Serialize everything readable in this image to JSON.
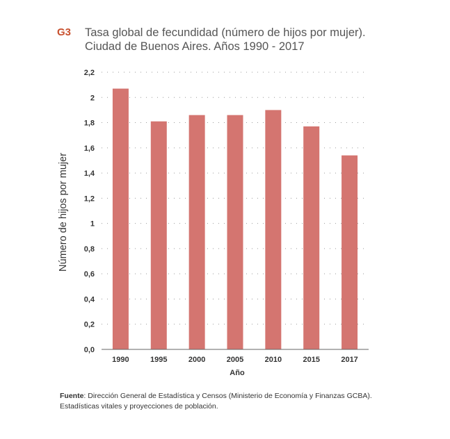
{
  "figure": {
    "label": "G3",
    "title_line1": "Tasa global de fecundidad (número de hijos por mujer).",
    "title_line2": "Ciudad de Buenos Aires. Años 1990 - 2017"
  },
  "chart_data": {
    "type": "bar",
    "categories": [
      "1990",
      "1995",
      "2000",
      "2005",
      "2010",
      "2015",
      "2017"
    ],
    "values": [
      2.07,
      1.81,
      1.86,
      1.86,
      1.9,
      1.77,
      1.54
    ],
    "ylim": [
      0,
      2.2
    ],
    "yticks": [
      0,
      0.2,
      0.4,
      0.6,
      0.8,
      1,
      1.2,
      1.4,
      1.6,
      1.8,
      2,
      2.2
    ],
    "ytick_labels": [
      "0,0",
      "0,2",
      "0,4",
      "0,6",
      "0,8",
      "1",
      "1,2",
      "1,4",
      "1,6",
      "1,8",
      "2",
      "2,2"
    ],
    "xlabel": "Año",
    "ylabel": "Número de hijos por mujer",
    "grid": "dotted horizontal",
    "bar_color": "#d47570"
  },
  "source": {
    "label": "Fuente",
    "text": ": Dirección General de Estadística y Censos (Ministerio de Economía y Finanzas GCBA).",
    "text_line2": "Estadísticas vitales y proyecciones de población."
  }
}
